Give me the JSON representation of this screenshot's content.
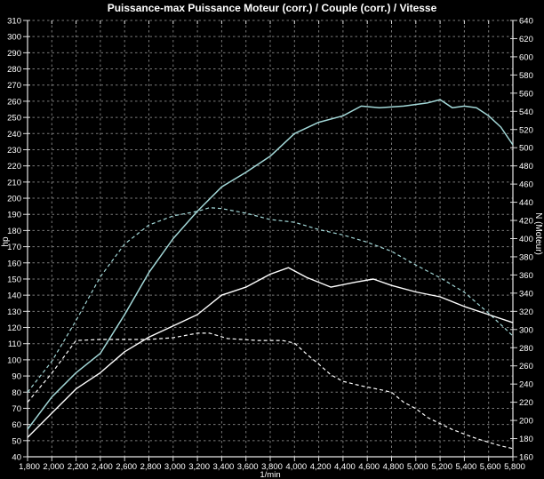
{
  "title": "Puissance-max Puissance Moteur (corr.) / Couple (corr.) / Vitesse",
  "colors": {
    "background": "#000000",
    "grid": "#7a7a7a",
    "border": "#e6e6e6",
    "tick": "#d8d8d8",
    "text": "#ffffff",
    "cyan": "#a3d8d8",
    "white": "#ffffff"
  },
  "chart_data": {
    "type": "line",
    "title": "Puissance-max Puissance Moteur (corr.) / Couple (corr.) / Vitesse",
    "grid": true,
    "legend": "none",
    "x_axis": {
      "label": "1/min",
      "min": 1800,
      "max": 5800,
      "tick_step": 200,
      "ticks": [
        1800,
        2000,
        2200,
        2400,
        2600,
        2800,
        3000,
        3200,
        3400,
        3600,
        3800,
        4000,
        4200,
        4400,
        4600,
        4800,
        5000,
        5200,
        5400,
        5600,
        5800
      ],
      "tick_format": "comma"
    },
    "left_axis": {
      "label": "hp",
      "min": 40,
      "max": 310,
      "tick_step": 10,
      "ticks": [
        40,
        50,
        60,
        70,
        80,
        90,
        100,
        110,
        120,
        130,
        140,
        150,
        160,
        170,
        180,
        190,
        200,
        210,
        220,
        230,
        240,
        250,
        260,
        270,
        280,
        290,
        300,
        310
      ]
    },
    "right_axis": {
      "label": "N (Moteur)",
      "min": 160,
      "max": 640,
      "tick_step": 20,
      "ticks": [
        160,
        180,
        200,
        220,
        240,
        260,
        280,
        300,
        320,
        340,
        360,
        380,
        400,
        420,
        440,
        460,
        480,
        500,
        520,
        540,
        560,
        580,
        600,
        620,
        640
      ]
    },
    "series": [
      {
        "id": "cyan-solid",
        "style": "solid",
        "color_key": "cyan",
        "axis": "left",
        "width": 1.5,
        "points": [
          [
            1800,
            57
          ],
          [
            2000,
            77
          ],
          [
            2200,
            92
          ],
          [
            2400,
            104
          ],
          [
            2600,
            128
          ],
          [
            2800,
            154
          ],
          [
            3000,
            175
          ],
          [
            3200,
            192
          ],
          [
            3400,
            207
          ],
          [
            3600,
            216
          ],
          [
            3800,
            226
          ],
          [
            4000,
            240
          ],
          [
            4200,
            247
          ],
          [
            4400,
            251
          ],
          [
            4550,
            257
          ],
          [
            4700,
            256
          ],
          [
            4900,
            257
          ],
          [
            5100,
            259
          ],
          [
            5200,
            261
          ],
          [
            5300,
            256
          ],
          [
            5400,
            257
          ],
          [
            5500,
            256
          ],
          [
            5600,
            251
          ],
          [
            5700,
            244
          ],
          [
            5800,
            233
          ]
        ]
      },
      {
        "id": "cyan-dashed",
        "style": "dashed",
        "color_key": "cyan",
        "axis": "right",
        "width": 1.2,
        "points": [
          [
            1800,
            231
          ],
          [
            2000,
            265
          ],
          [
            2200,
            310
          ],
          [
            2400,
            358
          ],
          [
            2600,
            394
          ],
          [
            2800,
            415
          ],
          [
            3000,
            425
          ],
          [
            3200,
            430
          ],
          [
            3300,
            434
          ],
          [
            3400,
            433
          ],
          [
            3600,
            428
          ],
          [
            3800,
            421
          ],
          [
            4000,
            418
          ],
          [
            4200,
            410
          ],
          [
            4400,
            404
          ],
          [
            4600,
            396
          ],
          [
            4800,
            386
          ],
          [
            5000,
            371
          ],
          [
            5200,
            357
          ],
          [
            5400,
            341
          ],
          [
            5600,
            318
          ],
          [
            5800,
            293
          ]
        ]
      },
      {
        "id": "white-solid",
        "style": "solid",
        "color_key": "white",
        "axis": "left",
        "width": 1.4,
        "points": [
          [
            1800,
            52
          ],
          [
            2000,
            67
          ],
          [
            2200,
            82
          ],
          [
            2400,
            92
          ],
          [
            2600,
            105
          ],
          [
            2800,
            114
          ],
          [
            3000,
            121
          ],
          [
            3200,
            128
          ],
          [
            3400,
            140
          ],
          [
            3600,
            145
          ],
          [
            3800,
            153
          ],
          [
            3950,
            157
          ],
          [
            4100,
            151
          ],
          [
            4300,
            145
          ],
          [
            4500,
            148
          ],
          [
            4650,
            150
          ],
          [
            4800,
            146
          ],
          [
            5000,
            142
          ],
          [
            5200,
            139
          ],
          [
            5400,
            133
          ],
          [
            5600,
            128
          ],
          [
            5800,
            123
          ]
        ]
      },
      {
        "id": "white-dashed",
        "style": "dashed",
        "color_key": "white",
        "axis": "right",
        "width": 1.2,
        "points": [
          [
            1800,
            220
          ],
          [
            2000,
            252
          ],
          [
            2200,
            288
          ],
          [
            2400,
            289
          ],
          [
            2600,
            289
          ],
          [
            2800,
            289
          ],
          [
            3000,
            291
          ],
          [
            3200,
            296
          ],
          [
            3300,
            296
          ],
          [
            3450,
            290
          ],
          [
            3700,
            288
          ],
          [
            3900,
            288
          ],
          [
            4000,
            285
          ],
          [
            4100,
            273
          ],
          [
            4200,
            262
          ],
          [
            4300,
            250
          ],
          [
            4400,
            243
          ],
          [
            4550,
            238
          ],
          [
            4700,
            234
          ],
          [
            4800,
            231
          ],
          [
            4900,
            220
          ],
          [
            5000,
            213
          ],
          [
            5100,
            203
          ],
          [
            5300,
            190
          ],
          [
            5500,
            180
          ],
          [
            5700,
            172
          ],
          [
            5800,
            169
          ]
        ]
      }
    ]
  }
}
